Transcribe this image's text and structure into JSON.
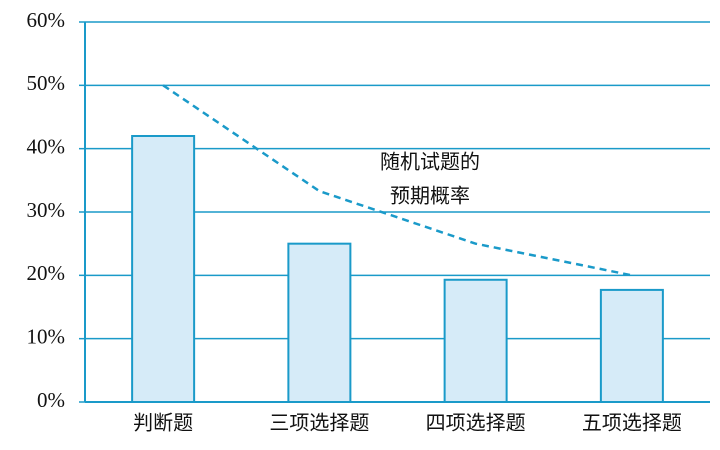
{
  "chart_data": {
    "type": "bar",
    "categories": [
      "判断题",
      "三项选择题",
      "四项选择题",
      "五项选择题"
    ],
    "values": [
      42,
      25,
      19.3,
      17.7
    ],
    "color": "#d6ebf8",
    "edge_color": "#1a9ac9",
    "ylim": [
      0,
      60
    ],
    "yticks": [
      {
        "value": 0,
        "label": "0%"
      },
      {
        "value": 10,
        "label": "10%"
      },
      {
        "value": 20,
        "label": "20%"
      },
      {
        "value": 30,
        "label": "30%"
      },
      {
        "value": 40,
        "label": "40%"
      },
      {
        "value": 50,
        "label": "50%"
      },
      {
        "value": 60,
        "label": "60%"
      }
    ],
    "grid": true,
    "line": {
      "label": [
        "随机试题的",
        "预期概率"
      ],
      "values": [
        50,
        33.3,
        25,
        20
      ],
      "color": "#1a9ac9",
      "dashed": true
    }
  }
}
